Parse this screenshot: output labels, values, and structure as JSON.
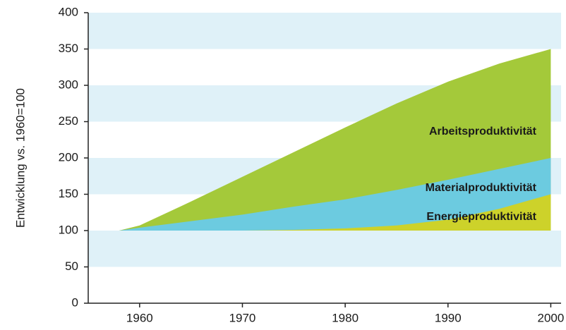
{
  "chart_data": {
    "type": "area",
    "ylabel": "Entwicklung vs. 1960=100",
    "x": [
      1958,
      1960,
      1965,
      1970,
      1975,
      1980,
      1985,
      1990,
      1995,
      2000
    ],
    "series": [
      {
        "name": "Arbeitsproduktivität",
        "color": "#a4c93a",
        "values": [
          100,
          107,
          140,
          174,
          208,
          242,
          275,
          305,
          330,
          350
        ]
      },
      {
        "name": "Materialproduktivität",
        "color": "#6ccbe0",
        "values": [
          100,
          104,
          113,
          122,
          133,
          143,
          156,
          170,
          185,
          200
        ]
      },
      {
        "name": "Energieproduktivität",
        "color": "#cdd22a",
        "values": [
          100,
          100,
          100,
          100,
          101,
          103,
          107,
          115,
          130,
          150
        ]
      }
    ],
    "xlim": [
      1955,
      2001
    ],
    "xticks": [
      1960,
      1970,
      1980,
      1990,
      2000
    ],
    "ylim": [
      0,
      400
    ],
    "yticks": [
      0,
      50,
      100,
      150,
      200,
      250,
      300,
      350,
      400
    ],
    "grid": "bands",
    "band_color": "#dff1f8"
  }
}
